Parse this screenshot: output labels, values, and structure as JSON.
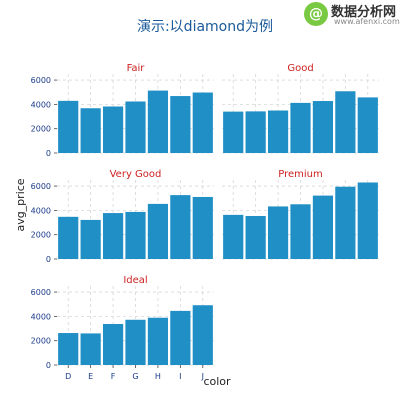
{
  "watermark": {
    "name": "数据分析网",
    "url": "www.afenxi.com",
    "logo_glyph": "@"
  },
  "colors": {
    "bar": "#1f8fc5",
    "panel_bg": "#ffffff",
    "grid": "#d7d7d7",
    "title": "#1a5a9a",
    "strip_text": "#cc2222",
    "tick_text": "#1a3a8a",
    "axis_label": "#222222"
  },
  "chart_data": {
    "type": "bar",
    "title": "演示:以diamond为例",
    "xlabel": "color",
    "ylabel": "avg_price",
    "categories": [
      "D",
      "E",
      "F",
      "G",
      "H",
      "I",
      "J"
    ],
    "ylim": [
      0,
      6500
    ],
    "yticks": [
      0,
      2000,
      4000,
      6000
    ],
    "grid": true,
    "facets": [
      {
        "name": "Fair",
        "values": [
          4291,
          3682,
          3827,
          4239,
          5136,
          4685,
          4976
        ]
      },
      {
        "name": "Good",
        "values": [
          3405,
          3424,
          3496,
          4123,
          4276,
          5079,
          4574
        ]
      },
      {
        "name": "Very Good",
        "values": [
          3470,
          3215,
          3779,
          3873,
          4535,
          5256,
          5104
        ]
      },
      {
        "name": "Premium",
        "values": [
          3631,
          3539,
          4325,
          4501,
          5217,
          5946,
          6295
        ]
      },
      {
        "name": "Ideal",
        "values": [
          2629,
          2598,
          3375,
          3721,
          3889,
          4452,
          4918
        ]
      }
    ]
  }
}
